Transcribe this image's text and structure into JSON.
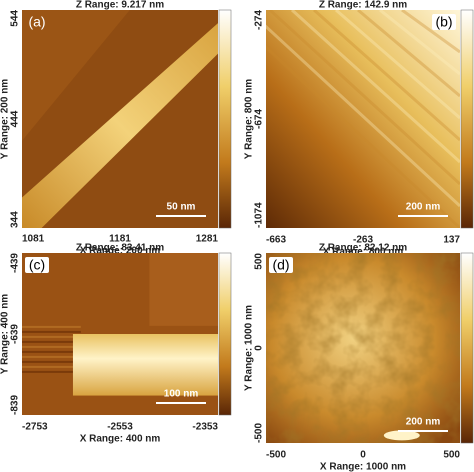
{
  "panels": [
    {
      "label": "(a)",
      "z_range": "Z Range:  9.217 nm",
      "y_range": "Y Range: 200 nm",
      "y_ticks": [
        "544",
        "444",
        "344"
      ],
      "x_range": "X Range: 200 nm",
      "x_ticks": [
        "1081",
        "1181",
        "1281"
      ],
      "scale_bar": "50 nm"
    },
    {
      "label": "(b)",
      "z_range": "Z Range:  142.9 nm",
      "y_range": "Y Range: 800 nm",
      "y_ticks": [
        "-274",
        "-674",
        "-1074"
      ],
      "x_range": "X Range: 800 nm",
      "x_ticks": [
        "-663",
        "-263",
        "137"
      ],
      "scale_bar": "200 nm"
    },
    {
      "label": "(c)",
      "z_range": "Z Range:  83.41 nm",
      "y_range": "Y Range: 400 nm",
      "y_ticks": [
        "-439",
        "-639",
        "-839"
      ],
      "x_range": "X Range: 400 nm",
      "x_ticks": [
        "-2753",
        "-2553",
        "-2353"
      ],
      "scale_bar": "100 nm"
    },
    {
      "label": "(d)",
      "z_range": "Z Range:  82.12 nm",
      "y_range": "Y Range: 1000 nm",
      "y_ticks": [
        "500",
        "0",
        "-500"
      ],
      "x_range": "X Range: 1000 nm",
      "x_ticks": [
        "-500",
        "0",
        "500"
      ],
      "scale_bar": "200 nm"
    }
  ]
}
